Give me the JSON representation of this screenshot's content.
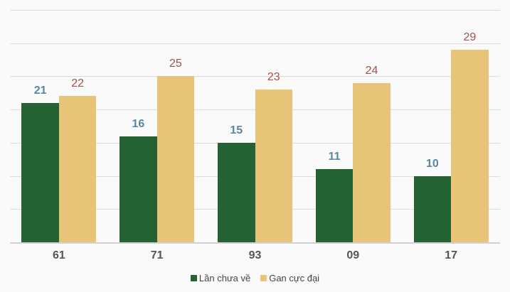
{
  "chart_data": {
    "type": "bar",
    "title": "",
    "xlabel": "",
    "ylabel": "",
    "categories": [
      "61",
      "71",
      "93",
      "09",
      "17"
    ],
    "series": [
      {
        "name": "Lần chưa về",
        "color": "#246133",
        "label_color": "#5b87a0",
        "values": [
          21,
          16,
          15,
          11,
          10
        ]
      },
      {
        "name": "Gan cực đại",
        "color": "#e8c478",
        "label_color": "#a0524a",
        "values": [
          22,
          25,
          23,
          24,
          29
        ]
      }
    ],
    "ylim": [
      0,
      35
    ],
    "grid": true,
    "gridline_step": 5,
    "legend_position": "bottom"
  },
  "legend": {
    "items": [
      {
        "label": "Lần chưa về",
        "color": "#246133"
      },
      {
        "label": "Gan cực đại",
        "color": "#e8c478"
      }
    ]
  }
}
